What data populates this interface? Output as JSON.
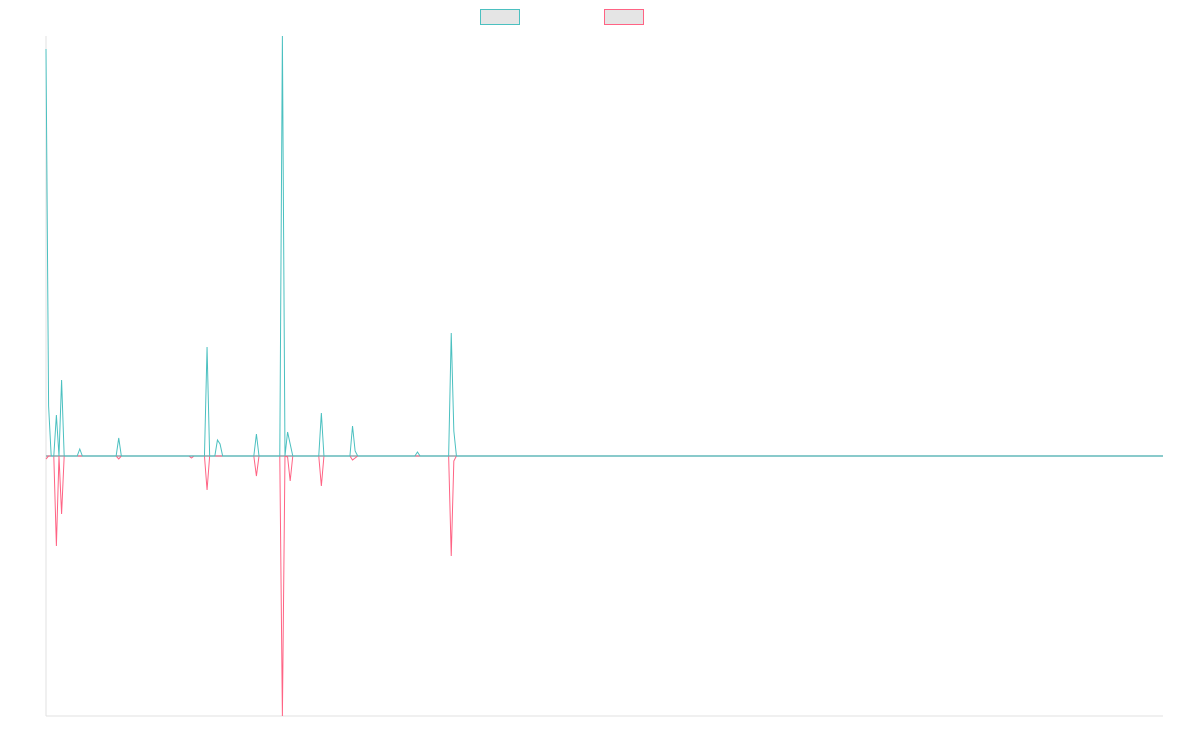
{
  "chart_data": {
    "type": "line",
    "title": "",
    "xlabel": "",
    "ylabel": "",
    "xlim": [
      0,
      430
    ],
    "ylim": [
      -260,
      420
    ],
    "grid": false,
    "legend_placement": "top-center",
    "series": [
      {
        "name": "",
        "color": "#4bc0c0",
        "points": [
          [
            0,
            407
          ],
          [
            1,
            50
          ],
          [
            2,
            0
          ],
          [
            3,
            0
          ],
          [
            4,
            41
          ],
          [
            5,
            0
          ],
          [
            6,
            76
          ],
          [
            7,
            0
          ],
          [
            12,
            0
          ],
          [
            13,
            7
          ],
          [
            14,
            0
          ],
          [
            27,
            0
          ],
          [
            28,
            18
          ],
          [
            29,
            0
          ],
          [
            61,
            0
          ],
          [
            62,
            109
          ],
          [
            63,
            0
          ],
          [
            65,
            0
          ],
          [
            66,
            16
          ],
          [
            67,
            12
          ],
          [
            68,
            0
          ],
          [
            80,
            0
          ],
          [
            81,
            22
          ],
          [
            82,
            0
          ],
          [
            90,
            0
          ],
          [
            91,
            420
          ],
          [
            92,
            0
          ],
          [
            93,
            24
          ],
          [
            94,
            12
          ],
          [
            95,
            0
          ],
          [
            105,
            0
          ],
          [
            106,
            43
          ],
          [
            107,
            0
          ],
          [
            117,
            0
          ],
          [
            118,
            30
          ],
          [
            119,
            5
          ],
          [
            120,
            0
          ],
          [
            142,
            0
          ],
          [
            143,
            4
          ],
          [
            144,
            0
          ],
          [
            155,
            0
          ],
          [
            156,
            123
          ],
          [
            157,
            25
          ],
          [
            158,
            0
          ],
          [
            430,
            0
          ]
        ]
      },
      {
        "name": "",
        "color": "#ff6384",
        "points": [
          [
            0,
            -3
          ],
          [
            1,
            0
          ],
          [
            3,
            0
          ],
          [
            4,
            -90
          ],
          [
            5,
            0
          ],
          [
            6,
            -58
          ],
          [
            7,
            0
          ],
          [
            27,
            0
          ],
          [
            28,
            -3
          ],
          [
            29,
            0
          ],
          [
            55,
            0
          ],
          [
            56,
            -2
          ],
          [
            57,
            0
          ],
          [
            61,
            0
          ],
          [
            62,
            -34
          ],
          [
            63,
            0
          ],
          [
            80,
            0
          ],
          [
            81,
            -20
          ],
          [
            82,
            0
          ],
          [
            90,
            0
          ],
          [
            91,
            -260
          ],
          [
            92,
            0
          ],
          [
            93,
            -1
          ],
          [
            94,
            -25
          ],
          [
            95,
            0
          ],
          [
            105,
            0
          ],
          [
            106,
            -30
          ],
          [
            107,
            0
          ],
          [
            117,
            0
          ],
          [
            118,
            -4
          ],
          [
            119,
            -2
          ],
          [
            120,
            0
          ],
          [
            155,
            0
          ],
          [
            156,
            -100
          ],
          [
            157,
            -5
          ],
          [
            158,
            0
          ],
          [
            430,
            0
          ]
        ]
      }
    ]
  }
}
